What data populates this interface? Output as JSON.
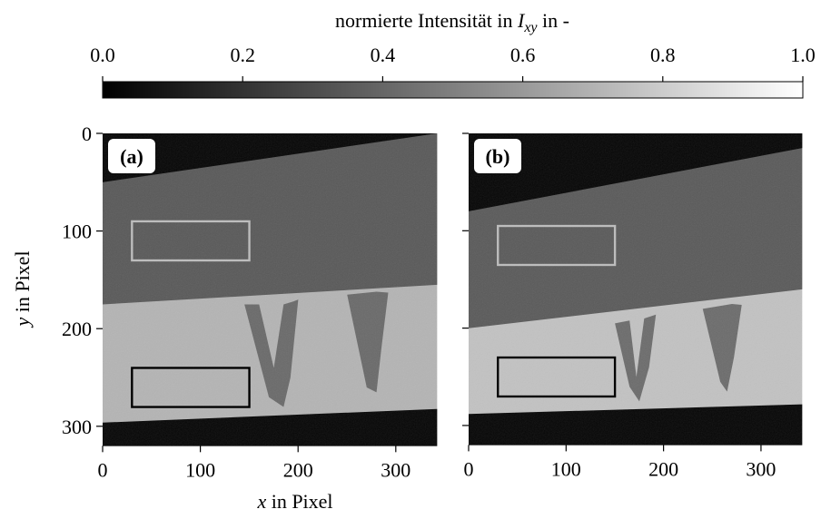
{
  "colorbar": {
    "label": [
      "normierte Intensität in",
      "I",
      "xy",
      "in -"
    ],
    "lim": [
      0,
      1
    ],
    "ticks": [
      {
        "value": 0,
        "label": "0.0"
      },
      0.2,
      0.4,
      0.6,
      0.8,
      {
        "value": 1,
        "label": "1.0"
      }
    ]
  },
  "xlabel": {
    "symbol": "x",
    "text": "in Pixel"
  },
  "ylabel": {
    "symbol": "y",
    "text": "in Pixel"
  },
  "chart_data": [
    {
      "type": "image",
      "label": "(a)",
      "xlim": [
        0,
        342
      ],
      "ylim": [
        0,
        320
      ],
      "y_inverted": true,
      "xticks": [
        0,
        100,
        200,
        300
      ],
      "yticks": [
        0,
        100,
        200,
        300
      ],
      "show_ytick_labels": true
    },
    {
      "type": "image",
      "label": "(b)",
      "xlim": [
        0,
        342
      ],
      "ylim": [
        0,
        320
      ],
      "y_inverted": true,
      "xticks": [
        0,
        100,
        200,
        300
      ],
      "yticks": [
        0,
        100,
        200,
        300
      ],
      "show_ytick_labels": false
    }
  ]
}
